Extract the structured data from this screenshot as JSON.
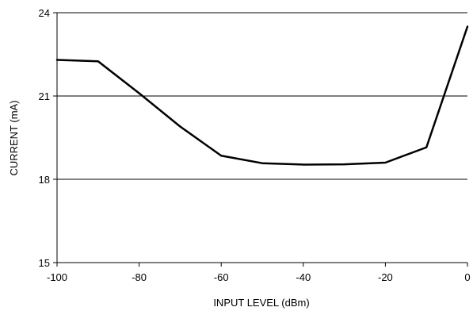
{
  "chart_data": {
    "type": "line",
    "xlabel": "INPUT LEVEL (dBm)",
    "ylabel": "CURRENT (mA)",
    "xlim": [
      -100,
      0
    ],
    "ylim": [
      15,
      24
    ],
    "xticks": [
      -100,
      -80,
      -60,
      -40,
      -20,
      0
    ],
    "yticks": [
      15,
      18,
      21,
      24
    ],
    "grid": "horizontal",
    "legend": "none",
    "series": [
      {
        "color": "#000000",
        "x": [
          -100,
          -90,
          -80,
          -70,
          -60,
          -50,
          -40,
          -30,
          -20,
          -10,
          0
        ],
        "y": [
          22.3,
          22.25,
          21.1,
          19.9,
          18.85,
          18.58,
          18.53,
          18.54,
          18.6,
          19.15,
          23.5
        ]
      }
    ]
  }
}
